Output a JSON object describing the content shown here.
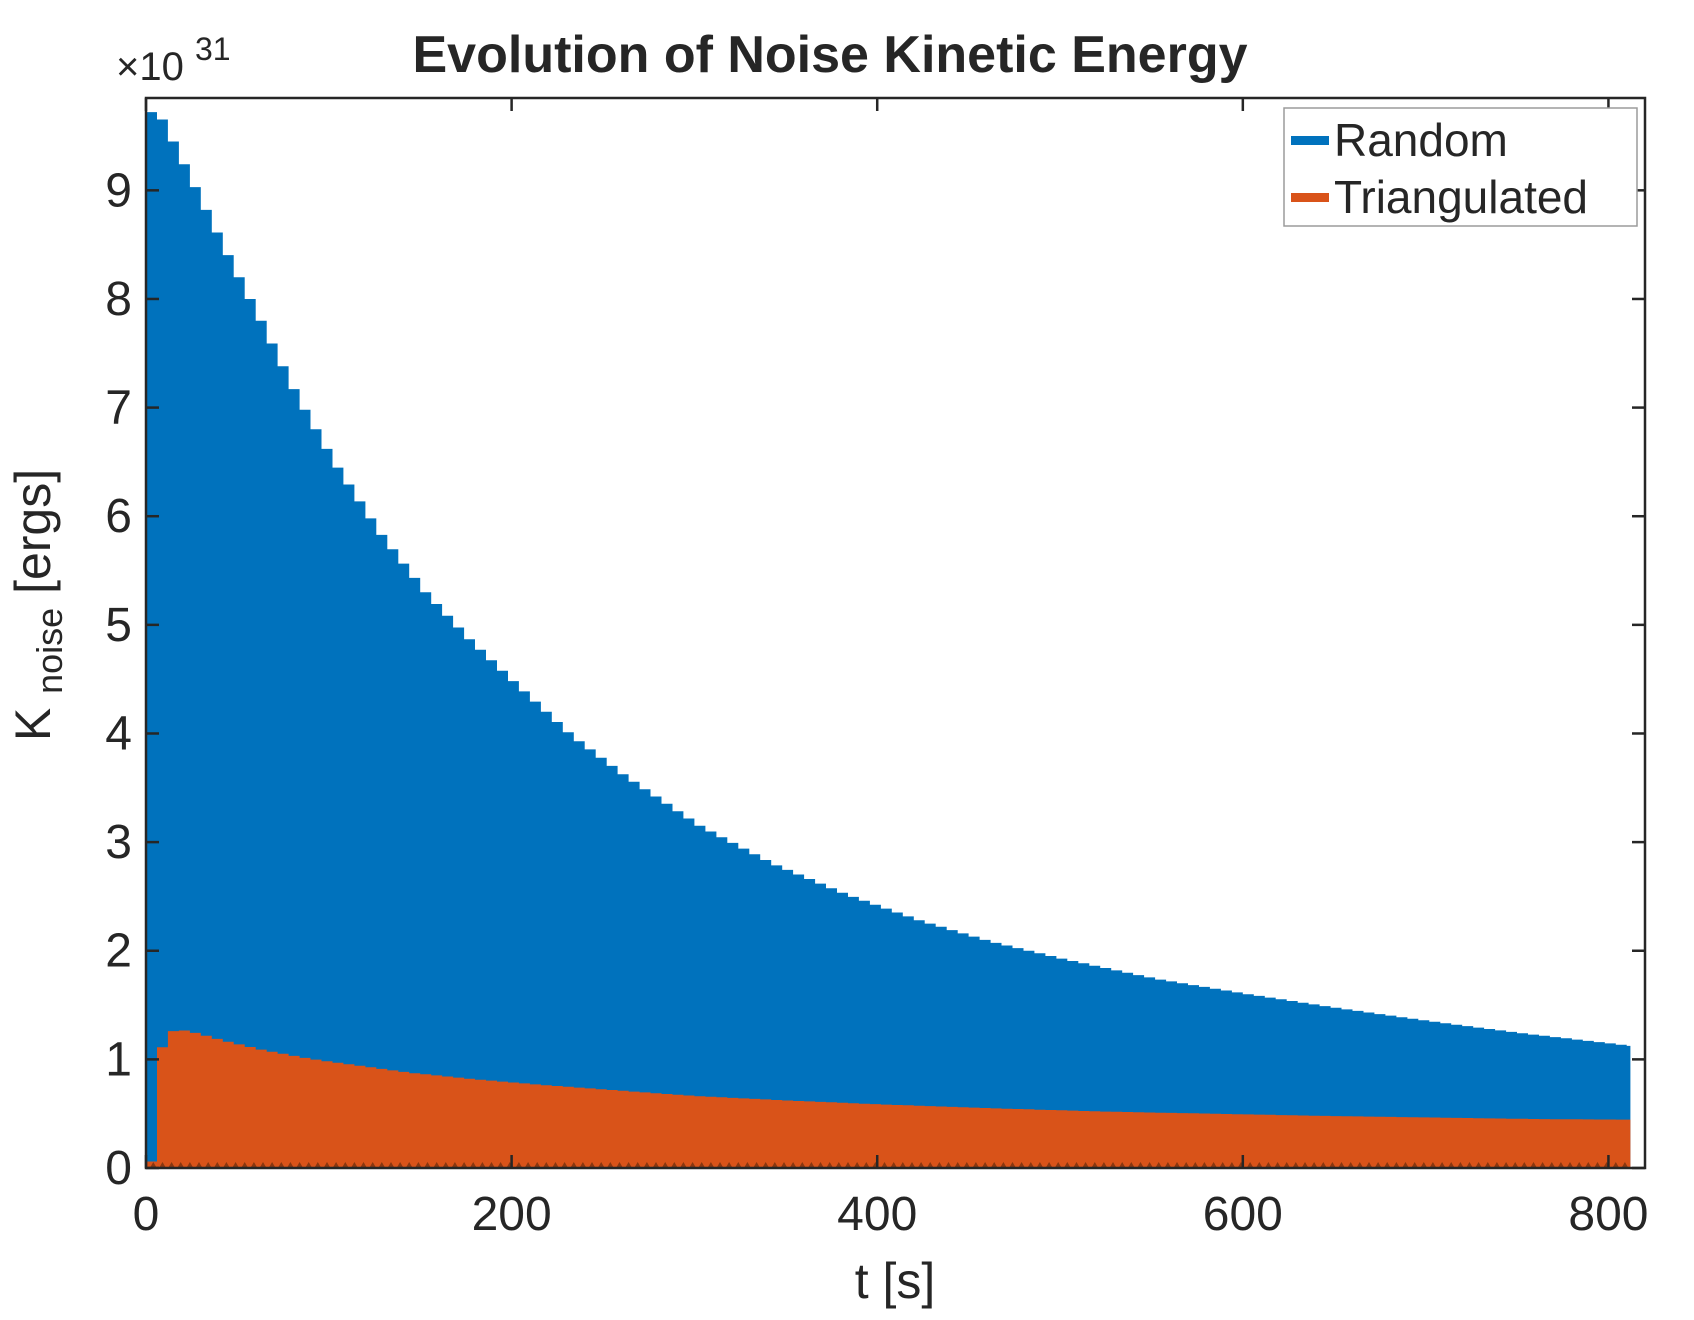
{
  "title": "Evolution of Noise Kinetic Energy",
  "offset": {
    "mantissa": "×10",
    "exponent": "31"
  },
  "xlabel": "t [s]",
  "ylabel": {
    "main": "K",
    "sub": "noise",
    "units": " [ergs]"
  },
  "legend": [
    {
      "label": "Random",
      "color": "#0072BD"
    },
    {
      "label": "Triangulated",
      "color": "#D95319"
    }
  ],
  "axis_color": "#262626",
  "chart_data": {
    "type": "area",
    "title": "Evolution of Noise Kinetic Energy",
    "xlabel": "t [s]",
    "ylabel": "K_noise [ergs], ×10^31",
    "xlim": [
      0,
      820
    ],
    "ylim": [
      0,
      9.85
    ],
    "xticks": [
      0,
      200,
      400,
      600,
      800
    ],
    "yticks": [
      0,
      1,
      2,
      3,
      4,
      5,
      6,
      7,
      8,
      9
    ],
    "grid": false,
    "legend_position": "northeast",
    "notch_color": "#7a330f",
    "oscillation_step_s": 6,
    "series": [
      {
        "name": "Random",
        "color": "#0072BD",
        "fill_to": 0,
        "x": [
          0,
          4,
          12,
          22,
          32,
          45,
          60,
          80,
          100,
          125,
          150,
          175,
          200,
          230,
          260,
          300,
          340,
          380,
          420,
          460,
          500,
          550,
          600,
          650,
          700,
          750,
          812
        ],
        "y": [
          9.72,
          9.72,
          9.45,
          9.1,
          8.75,
          8.3,
          7.8,
          7.1,
          6.5,
          5.85,
          5.3,
          4.85,
          4.45,
          3.98,
          3.6,
          3.15,
          2.8,
          2.52,
          2.28,
          2.08,
          1.92,
          1.74,
          1.6,
          1.47,
          1.35,
          1.24,
          1.12
        ]
      },
      {
        "name": "Triangulated",
        "color": "#D95319",
        "fill_to": 0,
        "x": [
          0,
          3,
          8,
          14,
          25,
          40,
          60,
          85,
          110,
          140,
          175,
          210,
          250,
          300,
          350,
          400,
          460,
          520,
          580,
          640,
          700,
          760,
          812
        ],
        "y": [
          0.06,
          0.95,
          1.22,
          1.28,
          1.24,
          1.17,
          1.09,
          1.01,
          0.95,
          0.88,
          0.82,
          0.77,
          0.72,
          0.66,
          0.62,
          0.585,
          0.55,
          0.52,
          0.5,
          0.48,
          0.465,
          0.45,
          0.445
        ]
      }
    ]
  }
}
